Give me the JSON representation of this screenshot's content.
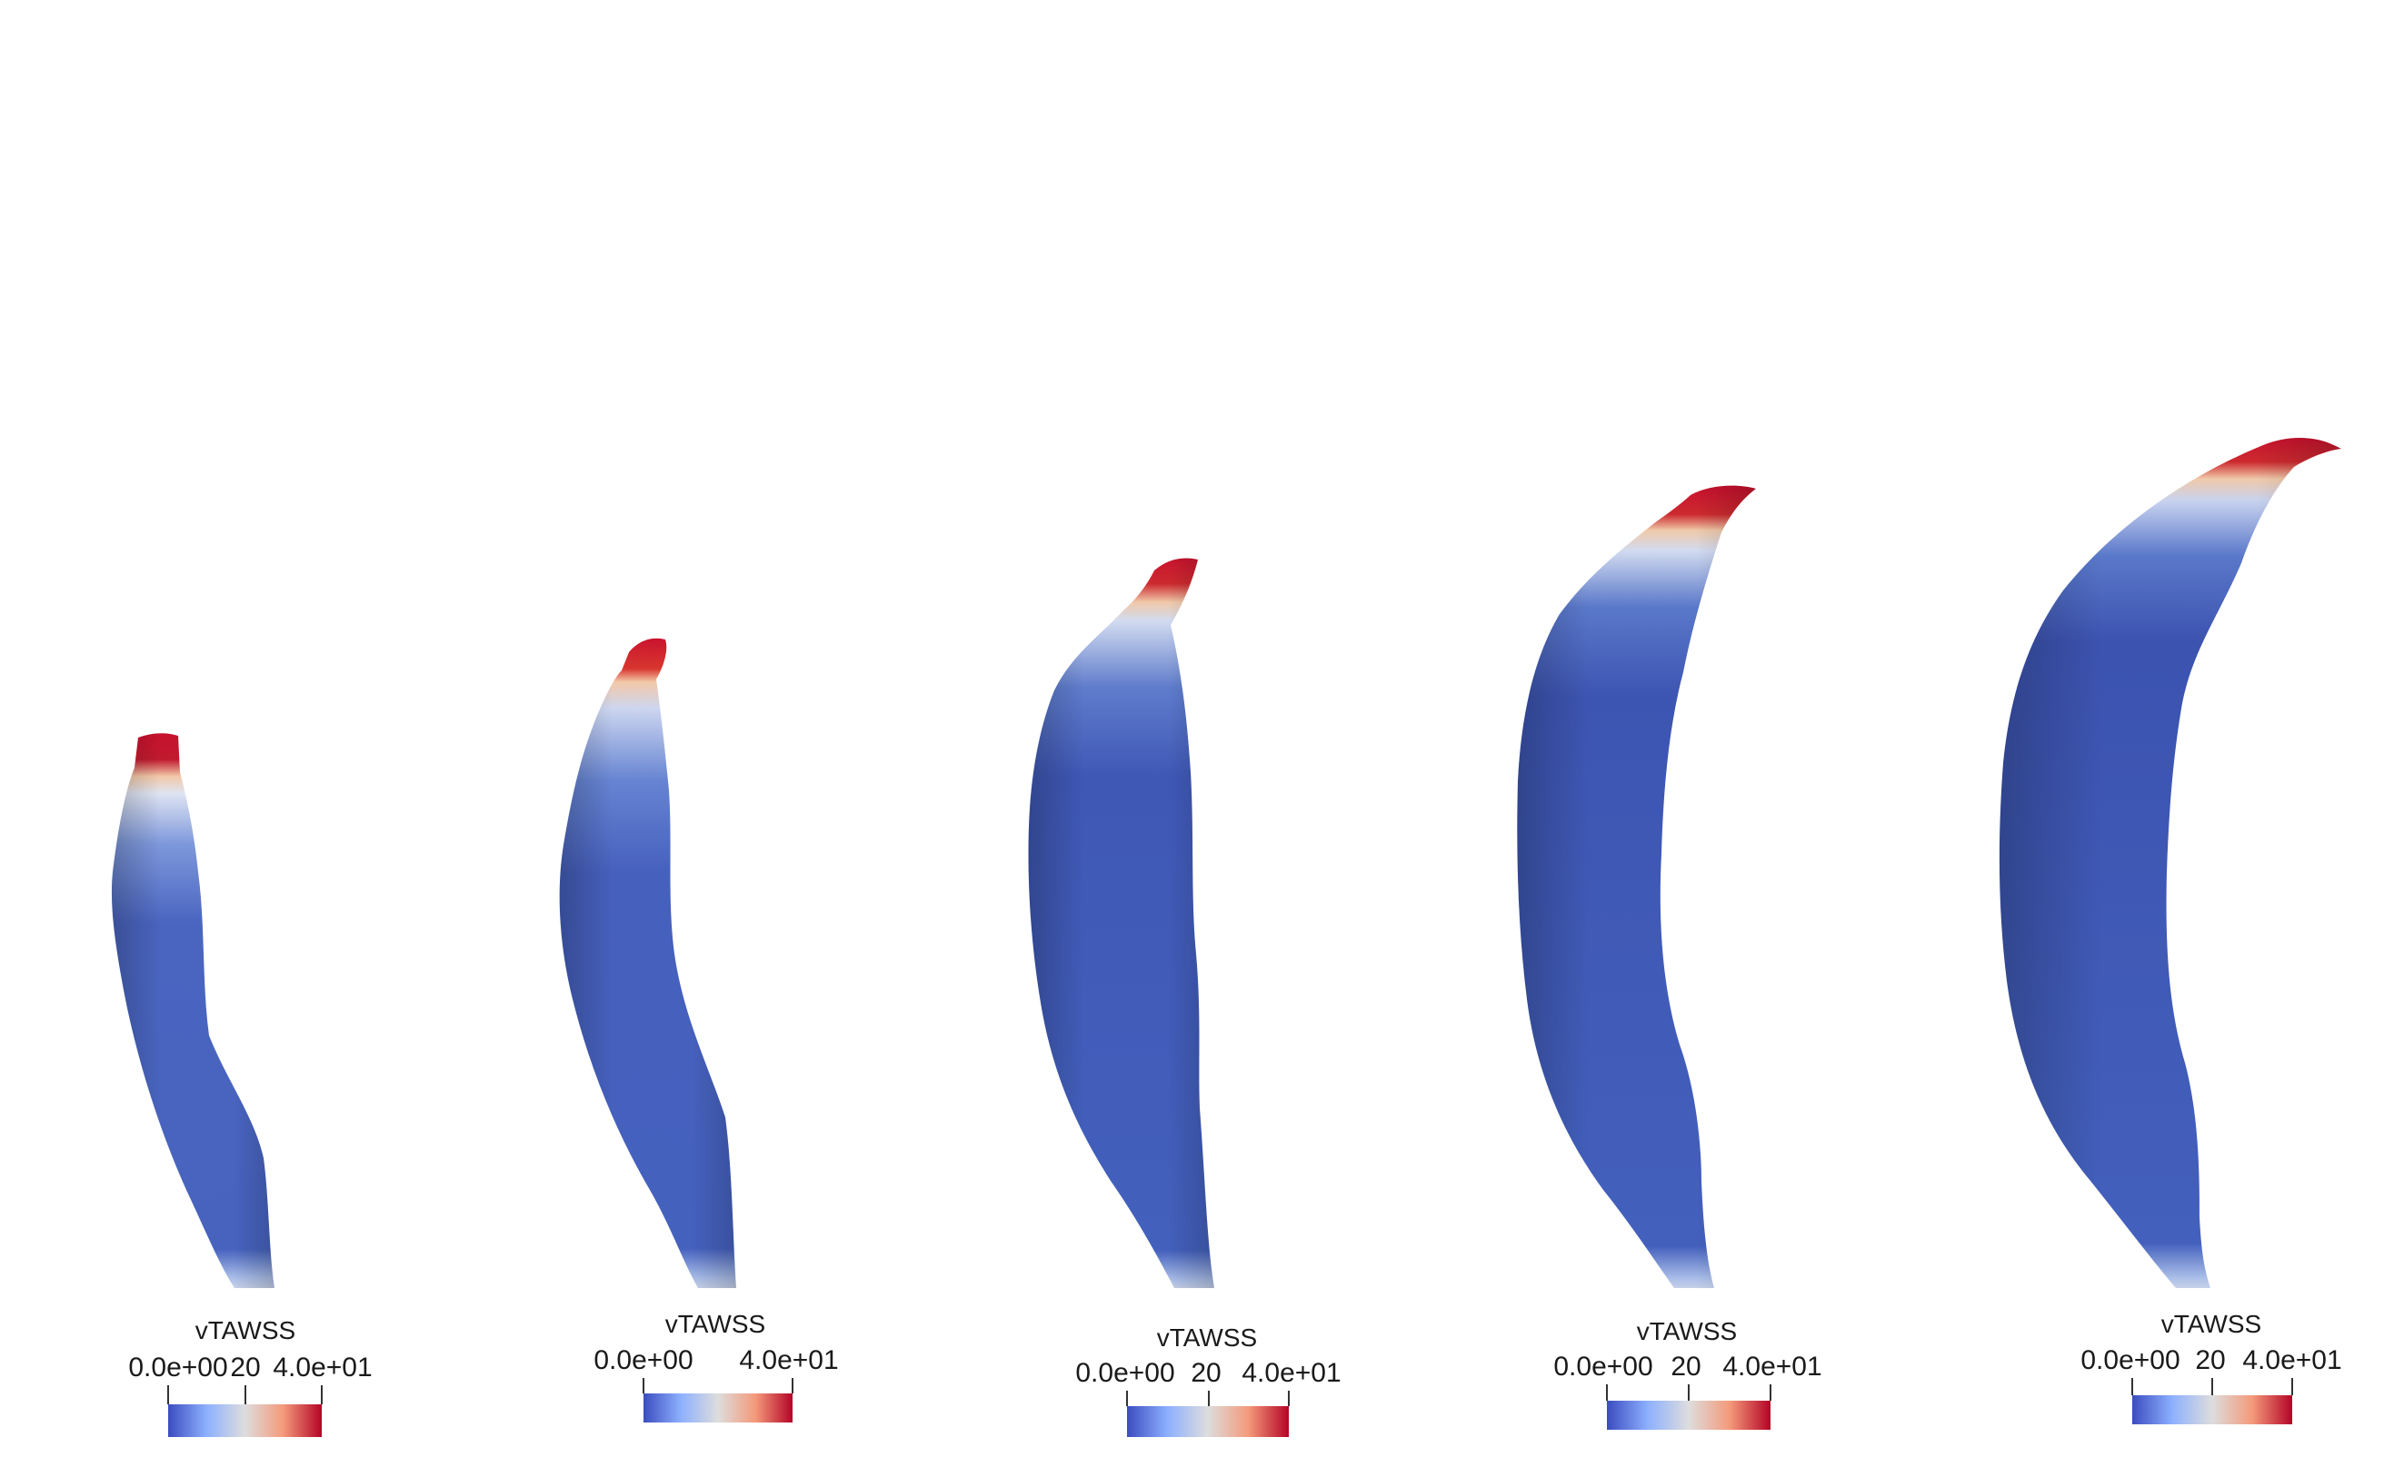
{
  "colors": {
    "background": "#ffffff",
    "vessel_body": "#3b52ad",
    "cool_end": "#3b4cc0",
    "mid": "#dddddd",
    "warm_end": "#b40426"
  },
  "panels": [
    {
      "title": "vTAWSS",
      "min_label": "0.0e+00",
      "mid_label": "20",
      "max_label": "4.0e+01"
    },
    {
      "title": "vTAWSS",
      "min_label": "0.0e+00",
      "mid_label": "",
      "max_label": "4.0e+01"
    },
    {
      "title": "vTAWSS",
      "min_label": "0.0e+00",
      "mid_label": "20",
      "max_label": "4.0e+01"
    },
    {
      "title": "vTAWSS",
      "min_label": "0.0e+00",
      "mid_label": "20",
      "max_label": "4.0e+01"
    },
    {
      "title": "vTAWSS",
      "min_label": "0.0e+00",
      "mid_label": "20",
      "max_label": "4.0e+01"
    }
  ]
}
